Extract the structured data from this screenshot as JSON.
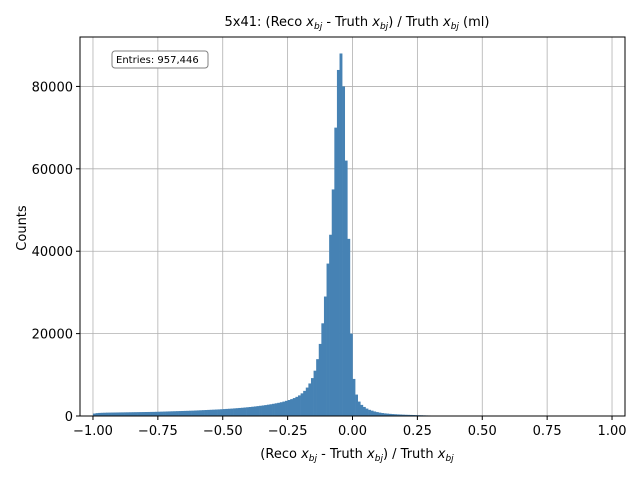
{
  "chart_data": {
    "type": "histogram",
    "title_prefix": "5x41: (Reco ",
    "title_var": "x",
    "title_sub": "bj",
    "title_mid": " - Truth ",
    "title_suffix_close": ") / Truth ",
    "title_tail": " (ml)",
    "xlabel_parts": [
      "(Reco ",
      "x",
      "bj",
      " - Truth ",
      "x",
      "bj",
      ") / Truth ",
      "x",
      "bj"
    ],
    "ylabel": "Counts",
    "entries_label": "Entries: 957,446",
    "xlim": [
      -1.05,
      1.05
    ],
    "ylim": [
      0,
      92000
    ],
    "xticks": [
      -1.0,
      -0.75,
      -0.5,
      -0.25,
      0.0,
      0.25,
      0.5,
      0.75,
      1.0
    ],
    "xtick_labels": [
      "−1.00",
      "−0.75",
      "−0.50",
      "−0.25",
      "0.00",
      "0.25",
      "0.50",
      "0.75",
      "1.00"
    ],
    "yticks": [
      0,
      20000,
      40000,
      60000,
      80000
    ],
    "ytick_labels": [
      "0",
      "20000",
      "40000",
      "60000",
      "80000"
    ],
    "bar_color": "#4682b4",
    "bin_edges_start": -1.0,
    "bin_width": 0.01,
    "counts": [
      600,
      700,
      750,
      780,
      800,
      820,
      830,
      840,
      850,
      860,
      870,
      880,
      890,
      900,
      910,
      920,
      930,
      940,
      950,
      960,
      970,
      980,
      990,
      1000,
      1020,
      1040,
      1060,
      1080,
      1100,
      1120,
      1140,
      1160,
      1180,
      1200,
      1220,
      1240,
      1260,
      1280,
      1300,
      1330,
      1360,
      1390,
      1420,
      1450,
      1480,
      1510,
      1540,
      1570,
      1600,
      1640,
      1680,
      1720,
      1760,
      1800,
      1850,
      1900,
      1950,
      2000,
      2060,
      2120,
      2180,
      2250,
      2320,
      2400,
      2480,
      2560,
      2650,
      2750,
      2850,
      2960,
      3080,
      3200,
      3340,
      3500,
      3680,
      3880,
      4100,
      4350,
      4650,
      5000,
      5500,
      6100,
      6900,
      7900,
      9200,
      11000,
      13800,
      17500,
      22500,
      29000,
      37000,
      44000,
      55000,
      70000,
      84000,
      88000,
      80000,
      62000,
      43000,
      20000,
      9000,
      5200,
      3500,
      2700,
      2200,
      1800,
      1500,
      1300,
      1100,
      950,
      820,
      720,
      640,
      580,
      520,
      470,
      430,
      390,
      360,
      330,
      300,
      280,
      260,
      240,
      220,
      200,
      180,
      160,
      140,
      130,
      120,
      110,
      100,
      90,
      80,
      70,
      60,
      55,
      50,
      45,
      40,
      36,
      32,
      28,
      25,
      22,
      20,
      18,
      16,
      14,
      12,
      11,
      10,
      9,
      8,
      7,
      6,
      5,
      5,
      4,
      4,
      3,
      3,
      3,
      2,
      2,
      2,
      2,
      1,
      1,
      1,
      1,
      1,
      1,
      1,
      1,
      0,
      0,
      0,
      0,
      0,
      0,
      0,
      0,
      0,
      0,
      0,
      0,
      0,
      0,
      0,
      0,
      0,
      0,
      0,
      0,
      0,
      0,
      0,
      0
    ]
  }
}
